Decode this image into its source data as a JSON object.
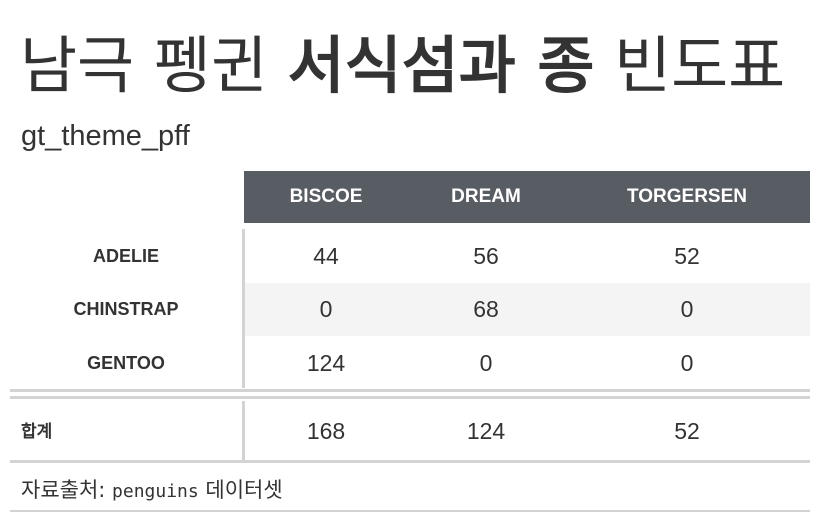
{
  "title": {
    "part1": "남극 펭귄 ",
    "part2_bold": "서식섬과 종",
    "part3": " 빈도표"
  },
  "subtitle": "gt_theme_pff",
  "table": {
    "columns": [
      "BISCOE",
      "DREAM",
      "TORGERSEN"
    ],
    "rows": [
      {
        "label": "ADELIE",
        "values": [
          "44",
          "56",
          "52"
        ]
      },
      {
        "label": "CHINSTRAP",
        "values": [
          "0",
          "68",
          "0"
        ]
      },
      {
        "label": "GENTOO",
        "values": [
          "124",
          "0",
          "0"
        ]
      }
    ],
    "summary": {
      "label": "합계",
      "values": [
        "168",
        "124",
        "52"
      ]
    }
  },
  "source": {
    "prefix": "자료출처: ",
    "code": "penguins",
    "suffix": " 데이터셋"
  },
  "colors": {
    "header_band": "#585d63",
    "stripe": "#f4f4f4",
    "rule": "#d3d3d3",
    "text": "#333333"
  }
}
